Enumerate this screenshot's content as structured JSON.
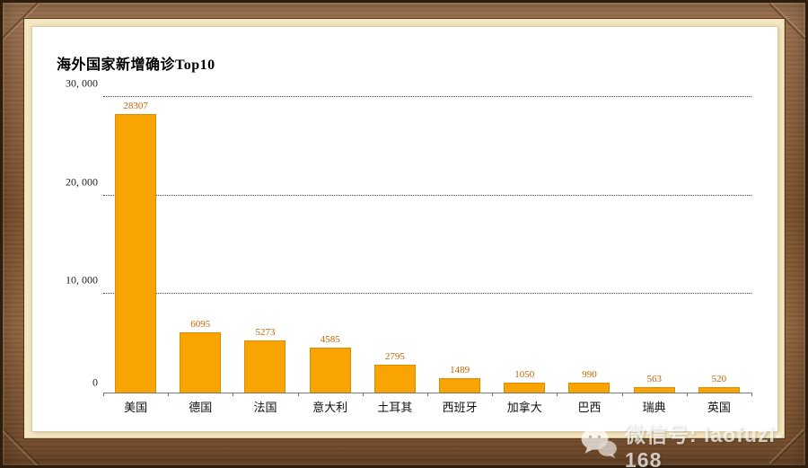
{
  "chart": {
    "y_ticks": [
      {
        "label": "0",
        "value": 0
      },
      {
        "label": "10, 000",
        "value": 10000
      },
      {
        "label": "20, 000",
        "value": 20000
      },
      {
        "label": "30, 000",
        "value": 30000
      }
    ],
    "colors": {
      "bar_fill": "#f9a402",
      "bar_border": "#dd8c00",
      "value_label": "#c66300",
      "grid": "#444444",
      "frame_wood": "#8a5a32",
      "mat": "#f3e6c0"
    }
  },
  "chart_data": {
    "type": "bar",
    "title": "海外国家新增确诊Top10",
    "categories": [
      "美国",
      "德国",
      "法国",
      "意大利",
      "土耳其",
      "西班牙",
      "加拿大",
      "巴西",
      "瑞典",
      "英国"
    ],
    "values": [
      28307,
      6095,
      5273,
      4585,
      2795,
      1489,
      1050,
      990,
      563,
      520
    ],
    "xlabel": "",
    "ylabel": "",
    "ylim": [
      0,
      30000
    ],
    "grid": "horizontal-dotted",
    "legend": "none",
    "bar_value_labels": true
  },
  "watermark": {
    "text": "微信号: laofuzi-168",
    "icon": "wechat-icon"
  }
}
